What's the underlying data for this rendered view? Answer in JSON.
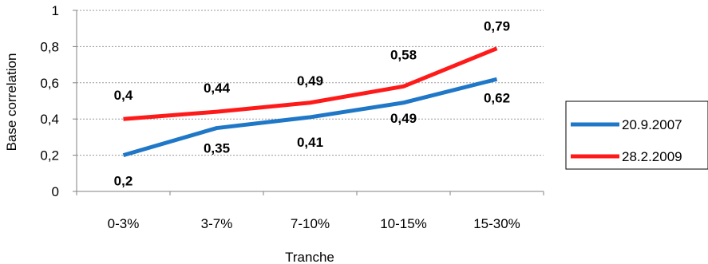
{
  "chart_data": {
    "type": "line",
    "title": "",
    "xlabel": "Tranche",
    "ylabel": "Base correlation",
    "categories": [
      "0-3%",
      "3-7%",
      "7-10%",
      "10-15%",
      "15-30%"
    ],
    "ylim": [
      0,
      1
    ],
    "yticks": [
      "0",
      "0,2",
      "0,4",
      "0,6",
      "0,8",
      "1"
    ],
    "ytick_values": [
      0,
      0.2,
      0.4,
      0.6,
      0.8,
      1
    ],
    "grid": true,
    "legend": "right",
    "series": [
      {
        "name": "20.9.2007",
        "color": "#1f77c7",
        "values": [
          0.2,
          0.35,
          0.41,
          0.49,
          0.62
        ],
        "labels": [
          "0,2",
          "0,35",
          "0,41",
          "0,49",
          "0,62"
        ]
      },
      {
        "name": "28.2.2009",
        "color": "#ff1a1a",
        "values": [
          0.4,
          0.44,
          0.49,
          0.58,
          0.79
        ],
        "labels": [
          "0,4",
          "0,44",
          "0,49",
          "0,58",
          "0,79"
        ]
      }
    ]
  }
}
